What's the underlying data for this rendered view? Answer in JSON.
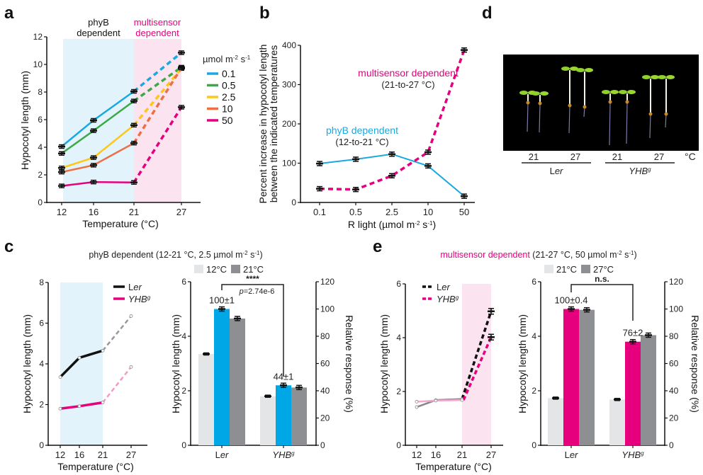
{
  "panels": {
    "a": {
      "letter": "a"
    },
    "b": {
      "letter": "b"
    },
    "c": {
      "letter": "c",
      "title_prefix": "phyB dependent (12-21 °C, 2.5 µmol m",
      "title_exp1": "-2",
      "title_mid": " s",
      "title_exp2": "-1",
      "title_suffix": ")"
    },
    "d": {
      "letter": "d"
    },
    "e": {
      "letter": "e",
      "title_colored": "multisensor dependent",
      "title_prefix": " (21-27 °C, 50 µmol m",
      "title_exp1": "-2",
      "title_mid": " s",
      "title_exp2": "-1",
      "title_suffix": ")"
    }
  },
  "colors": {
    "blue": "#1aa8e0",
    "green": "#3aaa48",
    "yellow": "#ffc61a",
    "orange": "#ec7046",
    "magenta": "#e6007e",
    "shade_blue": "#e3f3fb",
    "shade_pink": "#fce3f0",
    "light_gray": "#e4e5e7",
    "dark_gray": "#8e8f92",
    "bar_blue": "#00a7e6"
  },
  "chart_data": [
    {
      "id": "a",
      "type": "line",
      "title": "",
      "xlabel": "Temperature (°C)",
      "ylabel": "Hypocotyl length (mm)",
      "x": [
        12,
        16,
        21,
        27
      ],
      "xticks": [
        "12",
        "16",
        "21",
        "27"
      ],
      "ylim": [
        0,
        12
      ],
      "yticks": [
        "0",
        "2",
        "4",
        "6",
        "8",
        "10",
        "12"
      ],
      "annotations": {
        "phyB": [
          "phyB",
          "dependent"
        ],
        "multi": [
          "multisensor",
          "dependent"
        ]
      },
      "legend_title_base": "µmol m",
      "legend_title_exp1": "-2",
      "legend_title_mid": " s",
      "legend_title_exp2": "-1",
      "legend_position": "right",
      "note": "solid lines 12-21 °C, dashed 21-27 °C",
      "series": [
        {
          "name": "0.1",
          "color": "#1aa8e0",
          "values": [
            4.05,
            5.95,
            8.05,
            10.85
          ]
        },
        {
          "name": "0.5",
          "color": "#3aaa48",
          "values": [
            3.55,
            5.2,
            7.35,
            9.8
          ]
        },
        {
          "name": "2.5",
          "color": "#ffc61a",
          "values": [
            2.5,
            3.25,
            5.6,
            9.7
          ]
        },
        {
          "name": "10",
          "color": "#ec7046",
          "values": [
            2.2,
            2.7,
            4.3,
            9.75
          ]
        },
        {
          "name": "50",
          "color": "#e6007e",
          "values": [
            1.2,
            1.48,
            1.45,
            6.9
          ]
        }
      ]
    },
    {
      "id": "b",
      "type": "line",
      "xlabel_base": "R light (µmol m",
      "xlabel_exp1": "-2",
      "xlabel_mid": " s",
      "xlabel_exp2": "-1",
      "xlabel_suffix": ")",
      "ylabel": [
        "Percent increase in hypocotyl length",
        "between the indicated temperatures"
      ],
      "categories": [
        "0.1",
        "0.5",
        "2.5",
        "10",
        "50"
      ],
      "ylim": [
        0,
        400
      ],
      "yticks": [
        "0",
        "100",
        "200",
        "300",
        "400"
      ],
      "series": [
        {
          "name": "phyB dependent",
          "range": "(12-to-21 °C)",
          "color": "#1aa8e0",
          "style": "solid",
          "values": [
            99,
            110,
            123,
            93,
            16
          ]
        },
        {
          "name": "multisensor dependent",
          "range": "(21-to-27 °C)",
          "color": "#e6007e",
          "style": "dashed",
          "values": [
            35,
            33,
            68,
            128,
            388
          ]
        }
      ]
    },
    {
      "id": "c-left",
      "type": "line",
      "xlabel": "Temperature (°C)",
      "ylabel": "Hypocotyl length (mm)",
      "x": [
        12,
        16,
        21,
        27
      ],
      "xticks": [
        "12",
        "16",
        "21",
        "27"
      ],
      "ylim": [
        0,
        8
      ],
      "yticks": [
        "0",
        "2",
        "4",
        "6",
        "8"
      ],
      "legend_position": "top-right",
      "series": [
        {
          "name": "Ler",
          "name_plain": "L",
          "name_italic": "er",
          "color": "#111111",
          "values": [
            3.35,
            4.3,
            4.65,
            6.35
          ]
        },
        {
          "name": "YHBg",
          "name_plain": "",
          "name_italic": "YHB",
          "name_sup": "g",
          "color": "#e6007e",
          "values": [
            1.8,
            1.92,
            2.1,
            3.85
          ]
        }
      ]
    },
    {
      "id": "c-right",
      "type": "bar",
      "ylabel": "Hypocotyl length (mm)",
      "ylabel_right": "Relative response (%)",
      "categories": [
        "Ler",
        "YHBg"
      ],
      "ylim": [
        0,
        6
      ],
      "ylim_right": [
        0,
        120
      ],
      "yticks": [
        "0",
        "2",
        "4",
        "6"
      ],
      "yticks_right": [
        "0",
        "20",
        "40",
        "60",
        "80",
        "100",
        "120"
      ],
      "legend": [
        "12°C",
        "21°C"
      ],
      "series": [
        {
          "name": "12°C",
          "color": "#e4e5e7",
          "values": [
            3.35,
            1.8
          ]
        },
        {
          "name": "relative response",
          "color": "#00a7e6",
          "values": [
            5.0,
            2.2
          ]
        },
        {
          "name": "21°C",
          "color": "#8e8f92",
          "values": [
            4.65,
            2.12
          ]
        }
      ],
      "data_labels": [
        "100±1",
        "44±1"
      ],
      "significance": "****",
      "p_value_italic": "p",
      "p_value_rest": "=2.74e-6"
    },
    {
      "id": "e-left",
      "type": "line",
      "xlabel": "Temperature (°C)",
      "ylabel": "Hypocotyl length (mm)",
      "x": [
        12,
        16,
        21,
        27
      ],
      "xticks": [
        "12",
        "16",
        "21",
        "27"
      ],
      "ylim": [
        0,
        6
      ],
      "yticks": [
        "0",
        "2",
        "4",
        "6"
      ],
      "legend_position": "top-left",
      "series": [
        {
          "name": "Ler",
          "color": "#111111",
          "values": [
            1.42,
            1.68,
            1.72,
            4.98
          ]
        },
        {
          "name": "YHBg",
          "color": "#e6007e",
          "values": [
            1.62,
            1.66,
            1.68,
            4.02
          ]
        }
      ]
    },
    {
      "id": "e-right",
      "type": "bar",
      "ylabel": "Hypocotyl length (mm)",
      "ylabel_right": "Relative response (%)",
      "categories": [
        "Ler",
        "YHBg"
      ],
      "ylim": [
        0,
        6
      ],
      "ylim_right": [
        0,
        120
      ],
      "yticks": [
        "0",
        "2",
        "4",
        "6"
      ],
      "yticks_right": [
        "0",
        "20",
        "40",
        "60",
        "80",
        "100",
        "120"
      ],
      "legend": [
        "21°C",
        "27°C"
      ],
      "series": [
        {
          "name": "21°C",
          "color": "#e4e5e7",
          "values": [
            1.73,
            1.68
          ]
        },
        {
          "name": "relative response",
          "color": "#e6007e",
          "values": [
            5.0,
            3.8
          ]
        },
        {
          "name": "27°C",
          "color": "#8e8f92",
          "values": [
            4.97,
            4.04
          ]
        }
      ],
      "data_labels": [
        "100±0.4",
        "76±2"
      ],
      "significance": "n.s."
    }
  ],
  "photo": {
    "temps": [
      "21",
      "27",
      "21",
      "27"
    ],
    "unit": "°C",
    "genotypes": [
      {
        "plain": "L",
        "italic": "er",
        "sup": ""
      },
      {
        "plain": "",
        "italic": "YHB",
        "sup": "g"
      }
    ],
    "seedlings_description": "Seedlings grown at 21 and 27 °C on black background"
  }
}
